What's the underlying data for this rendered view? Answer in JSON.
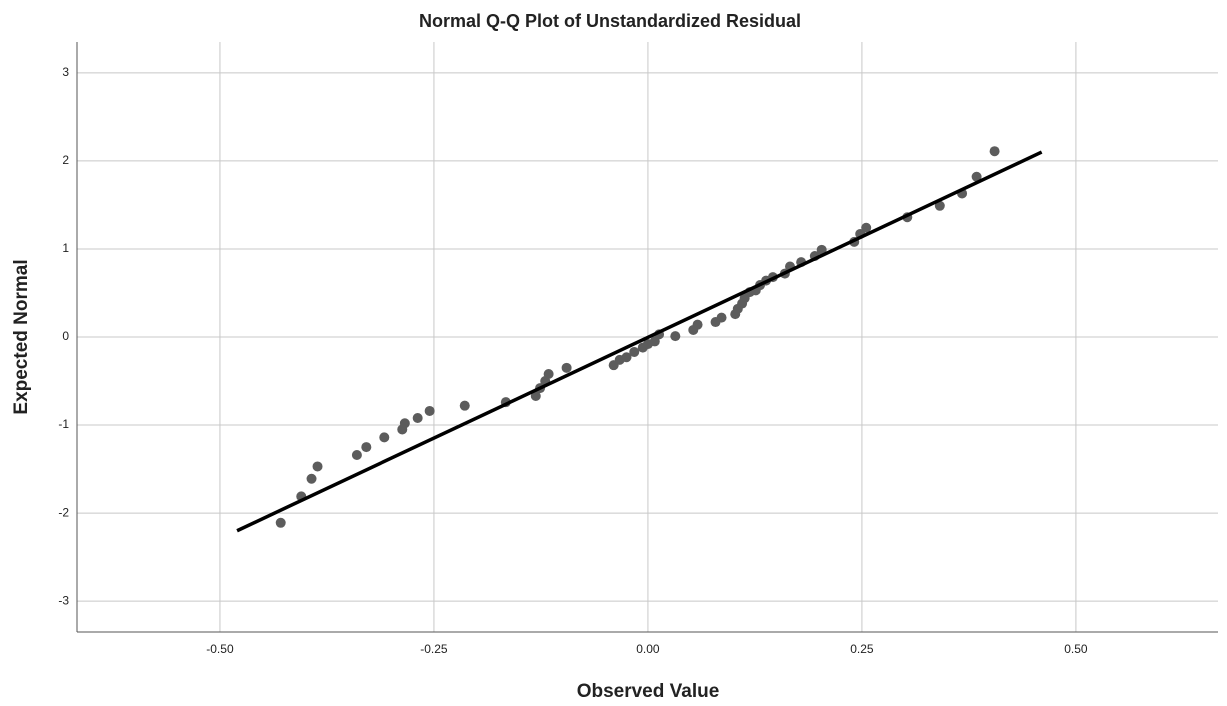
{
  "chart_data": {
    "type": "scatter",
    "title": "Normal Q-Q Plot of Unstandardized Residual",
    "x_label": "Observed Value",
    "y_label": "Expected Normal",
    "x": [
      -0.429,
      -0.405,
      -0.393,
      -0.386,
      -0.34,
      -0.329,
      -0.308,
      -0.287,
      -0.284,
      -0.269,
      -0.255,
      -0.214,
      -0.166,
      -0.131,
      -0.126,
      -0.12,
      -0.116,
      -0.095,
      -0.04,
      -0.033,
      -0.025,
      -0.016,
      -0.006,
      0,
      0.008,
      0.013,
      0.032,
      0.053,
      0.058,
      0.079,
      0.086,
      0.102,
      0.105,
      0.11,
      0.113,
      0.119,
      0.126,
      0.131,
      0.138,
      0.146,
      0.16,
      0.166,
      0.179,
      0.195,
      0.203,
      0.241,
      0.248,
      0.255,
      0.303,
      0.341,
      0.367,
      0.384,
      0.405
    ],
    "values": [
      -2.11,
      -1.81,
      -1.61,
      -1.47,
      -1.34,
      -1.25,
      -1.14,
      -1.05,
      -0.98,
      -0.92,
      -0.84,
      -0.78,
      -0.74,
      -0.67,
      -0.58,
      -0.5,
      -0.42,
      -0.35,
      -0.32,
      -0.26,
      -0.23,
      -0.17,
      -0.12,
      -0.08,
      -0.05,
      0.03,
      0.01,
      0.08,
      0.14,
      0.17,
      0.22,
      0.26,
      0.32,
      0.38,
      0.44,
      0.51,
      0.53,
      0.59,
      0.64,
      0.68,
      0.72,
      0.8,
      0.85,
      0.92,
      0.99,
      1.08,
      1.17,
      1.24,
      1.36,
      1.49,
      1.63,
      1.82,
      2.11
    ],
    "color": "#5c5c5c",
    "reference_line": {
      "x": [
        -0.48,
        0.46
      ],
      "values": [
        -2.2,
        2.1
      ],
      "color": "#000000"
    },
    "xlim": [
      -0.667,
      0.666
    ],
    "ylim": [
      -3.35,
      3.35
    ],
    "xticks": [
      {
        "value": -0.5,
        "label": "-0.50"
      },
      {
        "value": -0.25,
        "label": "-0.25"
      },
      {
        "value": 0,
        "label": "0.00"
      },
      {
        "value": 0.25,
        "label": "0.25"
      },
      {
        "value": 0.5,
        "label": "0.50"
      }
    ],
    "yticks": [
      3,
      2,
      1,
      0,
      -1,
      -2,
      -3
    ],
    "grid": true
  }
}
